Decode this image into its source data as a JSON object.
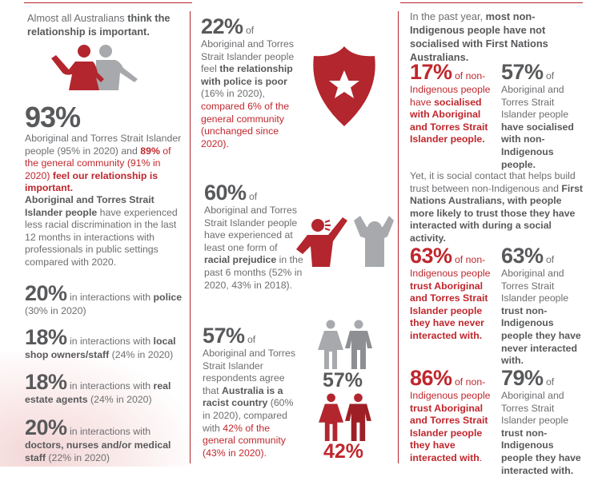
{
  "colors": {
    "accent": "#b3262e",
    "text_red": "#c0272d",
    "text_gray": "#6d6e71",
    "text_dark": "#58595b",
    "icon_gray": "#a7a9ac"
  },
  "col1": {
    "intro": [
      {
        "t": "Almost all Australians "
      },
      {
        "t": "think the relationship is important.",
        "s": "b"
      }
    ],
    "icon": "two-people-embrace-icon",
    "stat93": {
      "value": "93%",
      "text": [
        {
          "t": "Aboriginal and Torres Strait Islander people (95% in 2020) and "
        },
        {
          "t": "89%",
          "s": "rb"
        },
        {
          "t": " of the general community (91% in 2020) ",
          "s": "r"
        },
        {
          "t": "feel our relationship is important.",
          "s": "rb"
        }
      ]
    },
    "discrimination": [
      {
        "t": "Aboriginal and Torres Strait Islander people",
        "s": "b"
      },
      {
        "t": " have experienced less racial discrimination in the last 12 months in interactions with professionals in public settings compared with 2020."
      }
    ],
    "items": [
      {
        "value": "20%",
        "text": [
          {
            "t": " in interactions with "
          },
          {
            "t": "police",
            "s": "b"
          },
          {
            "t": " (30% in 2020)"
          }
        ]
      },
      {
        "value": "18%",
        "text": [
          {
            "t": "  in interactions with "
          },
          {
            "t": "local shop owners/staff",
            "s": "b"
          },
          {
            "t": " (24% in 2020)"
          }
        ]
      },
      {
        "value": "18%",
        "text": [
          {
            "t": " in interactions with "
          },
          {
            "t": "real estate agents",
            "s": "b"
          },
          {
            "t": " (24% in 2020)"
          }
        ]
      },
      {
        "value": "20%",
        "text": [
          {
            "t": "  in interactions with "
          },
          {
            "t": "doctors, nurses and/or medical staff",
            "s": "b"
          },
          {
            "t": " (22% in 2020)"
          }
        ]
      }
    ]
  },
  "col2": {
    "police": {
      "value": "22%",
      "text": [
        {
          "t": "  of",
          "s": "sm"
        },
        {
          "t": "\nAboriginal and Torres Strait Islander people feel "
        },
        {
          "t": "the relationship with police is poor",
          "s": "b"
        },
        {
          "t": " (16% in 2020), "
        },
        {
          "t": "compared 6% of the general community (unchanged since 2020).",
          "s": "r"
        }
      ],
      "icon": "shield-star-icon"
    },
    "prejudice": {
      "value": "60%",
      "text": [
        {
          "t": "  of",
          "s": "sm"
        },
        {
          "t": "\nAboriginal and Torres Strait Islander people have experienced at least one form of "
        },
        {
          "t": "racial prejudice",
          "s": "b"
        },
        {
          "t": " in the past 6 months (52% in 2020, 43% in 2018)."
        }
      ],
      "icon": "person-shouting-icon"
    },
    "racist": {
      "value": "57%",
      "text": [
        {
          "t": "  of",
          "s": "sm"
        },
        {
          "t": "\nAboriginal and Torres Strait Islander respondents agree that "
        },
        {
          "t": "Australia is a racist country",
          "s": "b"
        },
        {
          "t": " (60% in 2020), compared with "
        },
        {
          "t": "42% of the general community (43% in 2020).",
          "s": "r"
        }
      ],
      "figure_gray_label": "57%",
      "figure_red_label": "42%"
    }
  },
  "col3": {
    "intro": [
      {
        "t": "In the past year, "
      },
      {
        "t": "most non-Indigenous people have not socialised with First Nations Australians.",
        "s": "b"
      }
    ],
    "social_left": {
      "value": "17%",
      "text": [
        {
          "t": " of non-Indigenous people have ",
          "s": "r"
        },
        {
          "t": "socialised with Aboriginal and Torres Strait Islander people.",
          "s": "rb"
        }
      ]
    },
    "social_right": {
      "value": "57%",
      "text": [
        {
          "t": " of Aboriginal and Torres Strait Islander people "
        },
        {
          "t": "have socialised with non-Indigenous people.",
          "s": "b"
        }
      ]
    },
    "trust_intro": [
      {
        "t": "Yet, it is social contact that helps build trust between non-Indigenous and "
      },
      {
        "t": "First Nations Australians, with people more likely to trust those they have interacted with during a social activity.",
        "s": "b"
      }
    ],
    "trust1_left": {
      "value": "63%",
      "text": [
        {
          "t": " of non-Indigenous people ",
          "s": "r"
        },
        {
          "t": "trust Aboriginal and Torres Strait Islander people they have never interacted with.",
          "s": "rb"
        }
      ]
    },
    "trust1_right": {
      "value": "63%",
      "text": [
        {
          "t": " of Aboriginal and Torres Strait Islander people "
        },
        {
          "t": "trust non-Indigenous people they have never interacted with.",
          "s": "b"
        }
      ]
    },
    "trust2_left": {
      "value": "86%",
      "text": [
        {
          "t": " of non-Indigenous people ",
          "s": "r"
        },
        {
          "t": "trust Aboriginal and Torres Strait Islander people they have interacted with",
          "s": "rb"
        },
        {
          "t": ".",
          "s": "r"
        }
      ]
    },
    "trust2_right": {
      "value": "79%",
      "text": [
        {
          "t": " of Aboriginal and Torres Strait Islander people "
        },
        {
          "t": "trust non-Indigenous people they have interacted with.",
          "s": "b"
        }
      ]
    }
  }
}
